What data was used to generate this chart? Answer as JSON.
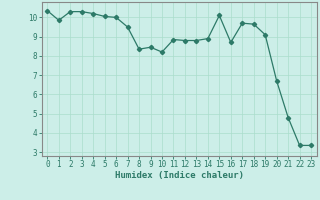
{
  "x": [
    0,
    1,
    2,
    3,
    4,
    5,
    6,
    7,
    8,
    9,
    10,
    11,
    12,
    13,
    14,
    15,
    16,
    17,
    18,
    19,
    20,
    21,
    22,
    23
  ],
  "y": [
    10.35,
    9.85,
    10.3,
    10.3,
    10.2,
    10.05,
    10.0,
    9.5,
    8.35,
    8.45,
    8.2,
    8.85,
    8.8,
    8.8,
    8.9,
    10.1,
    8.7,
    9.7,
    9.65,
    9.1,
    6.7,
    4.8,
    3.35,
    3.35
  ],
  "line_color": "#2d7a68",
  "marker": "D",
  "marker_size": 2.2,
  "background_color": "#cceee8",
  "grid_color_major": "#aaddcc",
  "grid_color_minor": "#bbddcc",
  "xlabel": "Humidex (Indice chaleur)",
  "ylim": [
    2.8,
    10.8
  ],
  "xlim": [
    -0.5,
    23.5
  ],
  "yticks": [
    3,
    4,
    5,
    6,
    7,
    8,
    9,
    10
  ],
  "xticks": [
    0,
    1,
    2,
    3,
    4,
    5,
    6,
    7,
    8,
    9,
    10,
    11,
    12,
    13,
    14,
    15,
    16,
    17,
    18,
    19,
    20,
    21,
    22,
    23
  ],
  "spine_color": "#888888",
  "tick_color": "#2d7a68",
  "label_color": "#2d7a68",
  "font_size": 5.5,
  "xlabel_font_size": 6.5
}
